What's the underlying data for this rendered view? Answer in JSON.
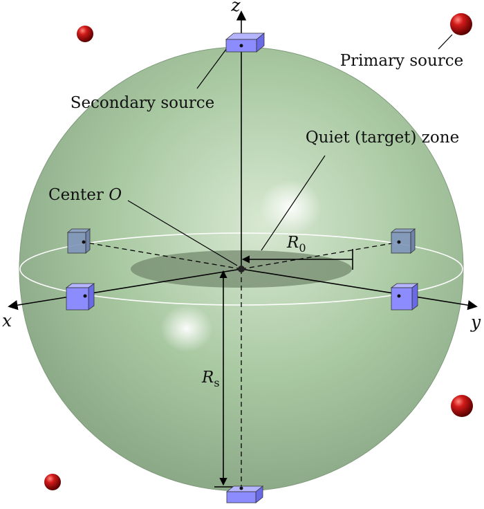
{
  "labels": {
    "secondary_source": "Secondary source",
    "primary_source": "Primary source",
    "quiet_zone": "Quiet (target) zone",
    "center_text": "Center ",
    "center_symbol": "O",
    "r0_symbol": "R",
    "r0_subscript": "0",
    "rs_symbol": "R",
    "rs_subscript": "s",
    "axis_x": "x",
    "axis_y": "y",
    "axis_z": "z"
  },
  "colors": {
    "sphere_fill": "#a6c8a0",
    "sphere_edge": "#7f9a7b",
    "quiet_zone_fill": "#7d9275",
    "secondary_source_fill": "#8c8cff",
    "primary_source_fill": "#c0141a",
    "equator_line": "#ffffff"
  },
  "icons": {
    "secondary_source": "blue-cube-icon",
    "primary_source": "red-sphere-icon"
  }
}
